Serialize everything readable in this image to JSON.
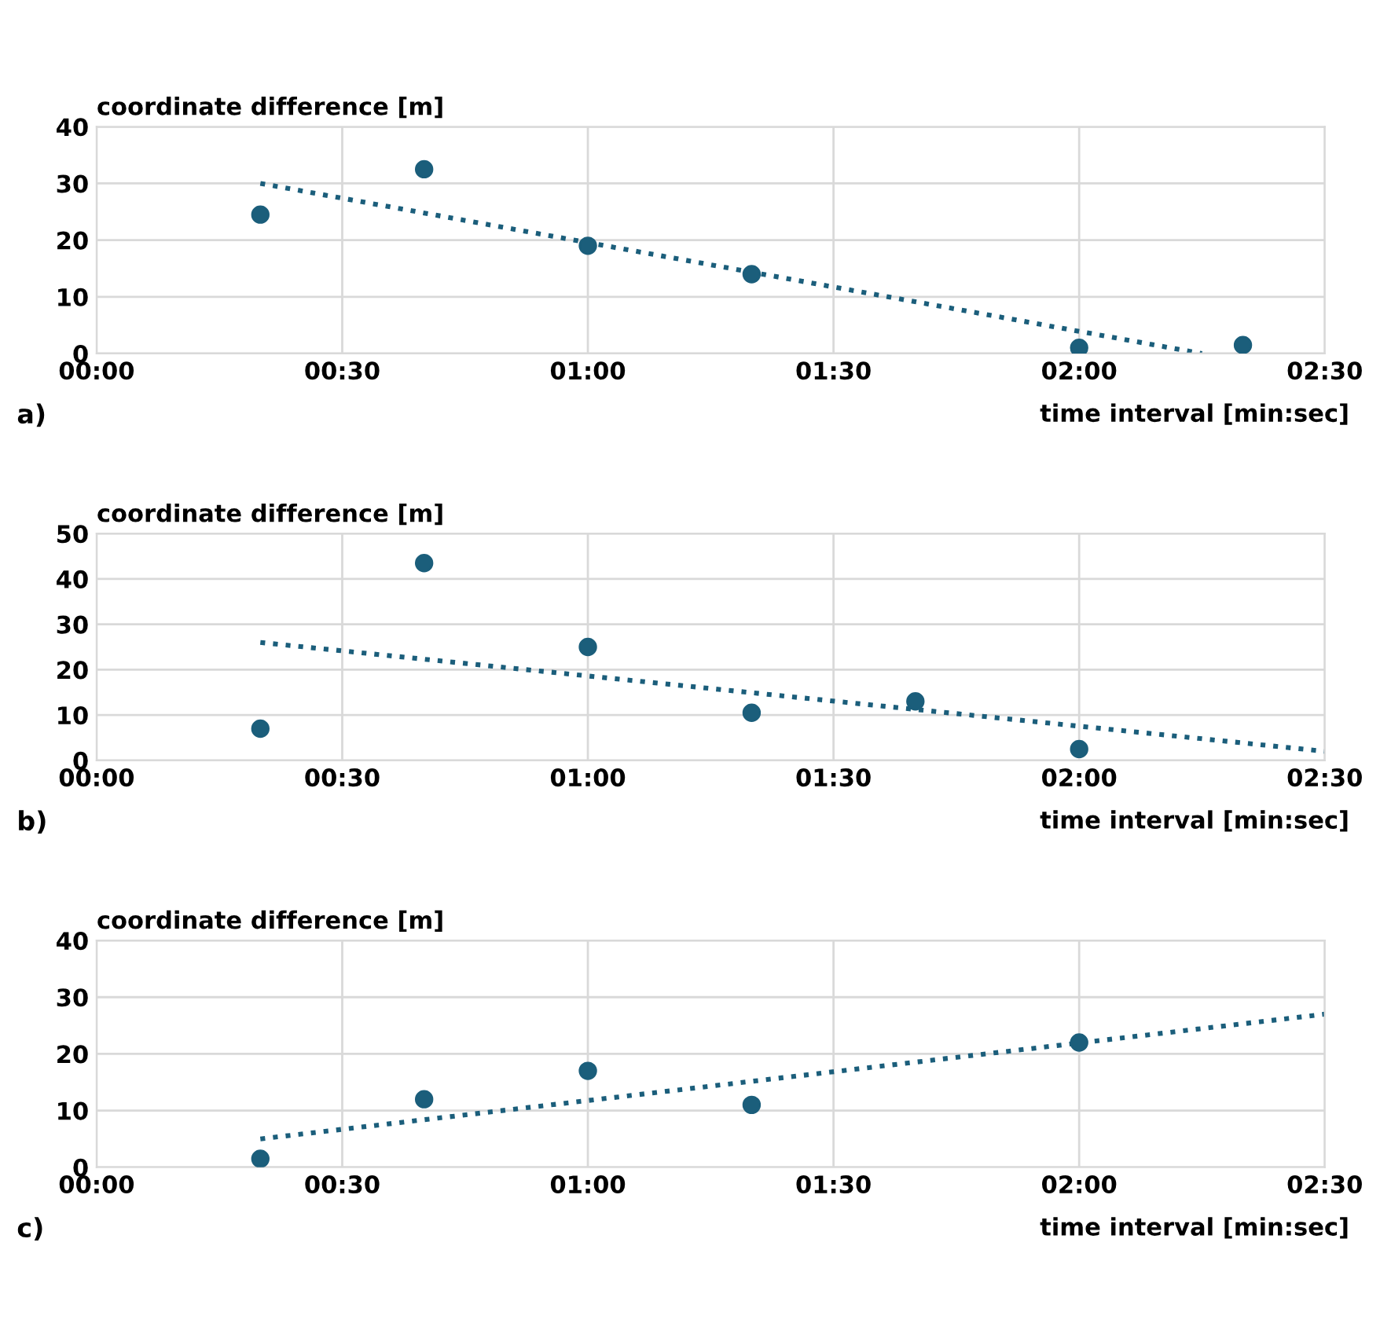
{
  "chart_data": [
    {
      "type": "scatter",
      "ylabel": "coordinate difference [m]",
      "xlabel": "time interval [min:sec]",
      "annotations": [
        "a)"
      ],
      "xlim": [
        0,
        150
      ],
      "xticks": [
        {
          "value": 0,
          "label": "00:00"
        },
        {
          "value": 30,
          "label": "00:30"
        },
        {
          "value": 60,
          "label": "01:00"
        },
        {
          "value": 90,
          "label": "01:30"
        },
        {
          "value": 120,
          "label": "02:00"
        },
        {
          "value": 150,
          "label": "02:30"
        }
      ],
      "ylim": [
        0,
        40
      ],
      "yticks": [
        0,
        10,
        20,
        30,
        40
      ],
      "grid": true,
      "series": [
        {
          "color": "#1b5e7b",
          "marker": "circle",
          "x": [
            20,
            40,
            60,
            80,
            120,
            140
          ],
          "values": [
            24.5,
            32.5,
            19,
            14,
            1,
            1.5
          ]
        },
        {
          "type": "line",
          "color": "#1b5e7b",
          "line_style": "dotted",
          "x": [
            20,
            135
          ],
          "values": [
            30,
            0
          ]
        }
      ]
    },
    {
      "type": "scatter",
      "ylabel": "coordinate difference [m]",
      "xlabel": "time interval [min:sec]",
      "annotations": [
        "b)"
      ],
      "xlim": [
        0,
        150
      ],
      "xticks": [
        {
          "value": 0,
          "label": "00:00"
        },
        {
          "value": 30,
          "label": "00:30"
        },
        {
          "value": 60,
          "label": "01:00"
        },
        {
          "value": 90,
          "label": "01:30"
        },
        {
          "value": 120,
          "label": "02:00"
        },
        {
          "value": 150,
          "label": "02:30"
        }
      ],
      "ylim": [
        0,
        50
      ],
      "yticks": [
        0,
        10,
        20,
        30,
        40,
        50
      ],
      "grid": true,
      "series": [
        {
          "color": "#1b5e7b",
          "marker": "circle",
          "x": [
            20,
            40,
            60,
            80,
            100,
            120
          ],
          "values": [
            7,
            43.5,
            25,
            10.5,
            13,
            2.5
          ]
        },
        {
          "type": "line",
          "color": "#1b5e7b",
          "line_style": "dotted",
          "x": [
            20,
            150
          ],
          "values": [
            26,
            2
          ]
        }
      ]
    },
    {
      "type": "scatter",
      "ylabel": "coordinate difference [m]",
      "xlabel": "time interval [min:sec]",
      "annotations": [
        "c)"
      ],
      "xlim": [
        0,
        150
      ],
      "xticks": [
        {
          "value": 0,
          "label": "00:00"
        },
        {
          "value": 30,
          "label": "00:30"
        },
        {
          "value": 60,
          "label": "01:00"
        },
        {
          "value": 90,
          "label": "01:30"
        },
        {
          "value": 120,
          "label": "02:00"
        },
        {
          "value": 150,
          "label": "02:30"
        }
      ],
      "ylim": [
        0,
        40
      ],
      "yticks": [
        0,
        10,
        20,
        30,
        40
      ],
      "grid": true,
      "series": [
        {
          "color": "#1b5e7b",
          "marker": "circle",
          "x": [
            20,
            40,
            60,
            80,
            120
          ],
          "values": [
            1.5,
            12,
            17,
            11,
            22
          ]
        },
        {
          "type": "line",
          "color": "#1b5e7b",
          "line_style": "dotted",
          "x": [
            20,
            150
          ],
          "values": [
            5,
            27
          ]
        }
      ]
    }
  ]
}
